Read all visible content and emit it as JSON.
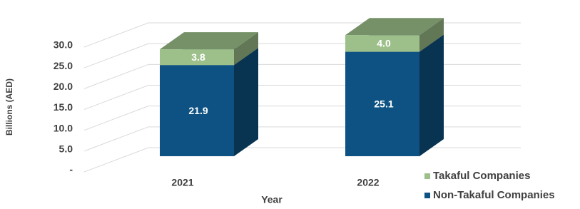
{
  "chart_data": {
    "type": "bar3d-stacked",
    "x_label": "Year",
    "y_label": "Billions (AED)",
    "categories": [
      "2021",
      "2022"
    ],
    "series": [
      {
        "name": "Takaful Companies",
        "color": "#9dc08b",
        "values": [
          3.8,
          4.0
        ],
        "value_labels": [
          "3.8",
          "4.0"
        ]
      },
      {
        "name": "Non-Takaful Companies",
        "color": "#0d5282",
        "values": [
          21.9,
          25.1
        ]
      }
    ],
    "ylim": [
      0,
      30
    ],
    "yticks": [
      {
        "value": 0,
        "label": "-"
      },
      {
        "value": 5,
        "label": "5.0"
      },
      {
        "value": 10,
        "label": "10.0"
      },
      {
        "value": 15,
        "label": "15.0"
      },
      {
        "value": 20,
        "label": "20.0"
      },
      {
        "value": 25,
        "label": "25.0"
      },
      {
        "value": 30,
        "label": "30.0"
      }
    ],
    "grid": true
  }
}
